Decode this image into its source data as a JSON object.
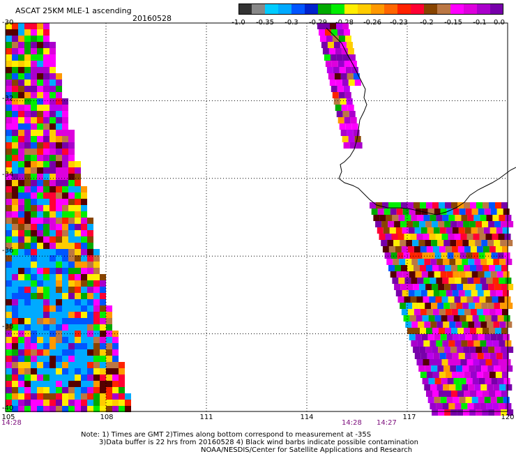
{
  "header": {
    "title": "ASCAT 25KM MLE-1 ascending",
    "date": "20160528"
  },
  "scale": {
    "colors": [
      "#333333",
      "#888888",
      "#00ccff",
      "#00aaff",
      "#0055ff",
      "#0022cc",
      "#00aa00",
      "#00ee00",
      "#ffee00",
      "#ffcc00",
      "#ff9900",
      "#ff6600",
      "#ff2200",
      "#ff0033",
      "#884400",
      "#bb7744",
      "#ff00ff",
      "#dd00dd",
      "#aa00cc",
      "#7700aa"
    ],
    "labels": [
      "-1.0",
      "-0.35",
      "-0.3",
      "-0.29",
      "-0.28",
      "-0.26",
      "-0.23",
      "-0.2",
      "-0.15",
      "-0.1",
      "0.0"
    ]
  },
  "chart_data": {
    "type": "map",
    "x_axis": {
      "range": [
        105,
        120
      ],
      "ticks": [
        "105",
        "108",
        "111",
        "114",
        "117",
        "120"
      ]
    },
    "y_axis": {
      "range": [
        -40,
        -30
      ],
      "ticks": [
        "-30",
        "-32",
        "-34",
        "-36",
        "-38",
        "-40"
      ]
    },
    "grid": true,
    "times": [
      "14:28",
      "14:28",
      "14:27"
    ]
  },
  "notes": [
    "Note: 1) Times are GMT 2)Times along bottom correspond to measurement at -35S",
    "3)Data buffer is 22 hrs from 20160528 4) Black wind barbs indicate possible contamination",
    "NOAA/NESDIS/Center for Satellite Applications and Research"
  ]
}
